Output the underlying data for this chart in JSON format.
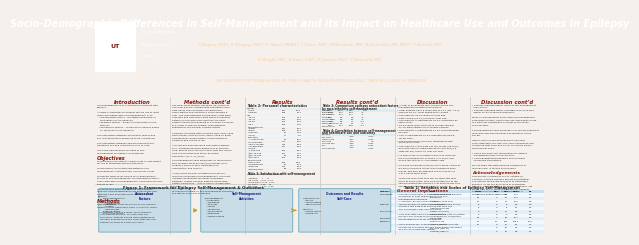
{
  "title": "Socio-Demographic Differences in Self-Management and its Impact on Healthcare Use and Outcomes in Epilepsy",
  "authors_line1": "C Begley, PhD¹; R Shegog, PhD¹; K Talluri, MBBS¹; C Chen, PhD¹; M Novanek, MS¹; A Dubinsky, RN, MPH¹; T Burnett MD¹",
  "authors_line2": "R Wright, RN¹; R Bass, PhD¹; D Larson, PhD¹; T Reynolds MS¹",
  "affiliation": "¹THE UNIVERSITY OF TEXAS SCHOOL OF PUBLIC HEALTH, NIELGER NEYFELD CLINIC, ²BAYLOR COLLEGE OF MEDICINE",
  "header_bg": "#7B1A10",
  "body_bg": "#F5F0EC",
  "section_title_color": "#8B1A10",
  "body_text_color": "#222222",
  "col_divider_color": "#BBBBBB",
  "figure_title": "Figure 1: Framework for Epilepsy Self-Management & Outcomes",
  "table_title": "Table 1: Variables and Scales of Epilepsy Self-Management",
  "arrow_color": "#C8A020",
  "box_color": "#C8DDE8",
  "box_border": "#6AAABE"
}
